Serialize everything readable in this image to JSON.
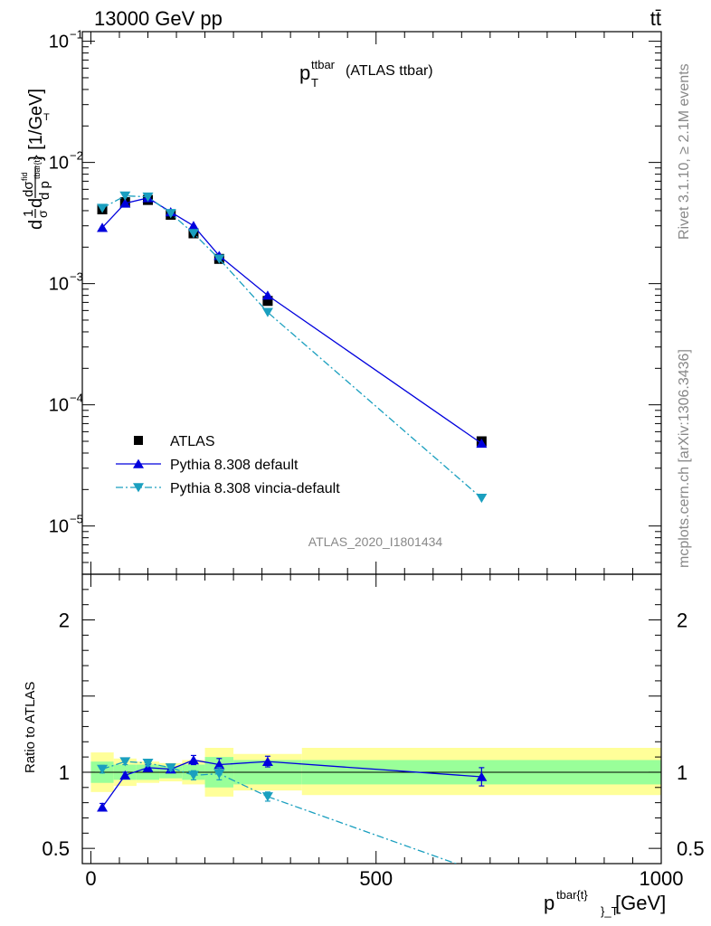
{
  "header": {
    "energy_label": "13000 GeV pp",
    "process_label": "tt̄",
    "side_rivet": "Rivet 3.1.10, ≥ 2.1M events",
    "side_mcplots": "mcplots.cern.ch [arXiv:1306.3436]",
    "watermark": "ATLAS_2020_I1801434"
  },
  "chart_data": {
    "type": "scatter",
    "title": "p_T^ttbar (ATLAS ttbar)",
    "title_main": "p",
    "title_sub": "T",
    "title_sup": "ttbar",
    "title_suffix": "(ATLAS ttbar)",
    "xlabel": "p^{tbar{t}}_T [GeV]",
    "xlabel_main": "p",
    "xlabel_sup": "tbar{t}",
    "xlabel_sub": "}_T",
    "xlabel_unit": "[GeV]",
    "ylabel": "1/σ dσ/d p_T^tbar{t} [1/GeV]",
    "ylabel_unit": "} [1/GeV]",
    "ratio_ylabel": "Ratio to ATLAS",
    "xlim": [
      -15,
      1000
    ],
    "ylim": [
      4e-06,
      0.12
    ],
    "ylog": true,
    "ratio_ylim": [
      0.4,
      2.3
    ],
    "x_ticks": [
      0,
      500,
      1000
    ],
    "x_tick_labels": [
      "0",
      "500",
      "1000"
    ],
    "y_ticks": [
      1e-05,
      0.0001,
      0.001,
      0.01,
      0.1
    ],
    "y_tick_labels": [
      "10^-5",
      "10^-4",
      "10^-3",
      "10^-2",
      "10^-1"
    ],
    "ratio_ticks": [
      0.5,
      1,
      2
    ],
    "ratio_tick_labels": [
      "0.5",
      "1",
      "2"
    ],
    "bins": [
      [
        0,
        40
      ],
      [
        40,
        80
      ],
      [
        80,
        120
      ],
      [
        120,
        160
      ],
      [
        160,
        200
      ],
      [
        200,
        250
      ],
      [
        250,
        370
      ],
      [
        370,
        1000
      ]
    ],
    "x": [
      20,
      60,
      100,
      140,
      180,
      225,
      310,
      685
    ],
    "series": [
      {
        "name": "ATLAS",
        "values": [
          0.0041,
          0.0047,
          0.0049,
          0.0037,
          0.0026,
          0.0016,
          0.00072,
          5e-05
        ],
        "ratio_stat_band": [
          [
            0.93,
            1.07
          ],
          [
            0.95,
            1.05
          ],
          [
            0.95,
            1.05
          ],
          [
            0.96,
            1.04
          ],
          [
            0.95,
            1.05
          ],
          [
            0.9,
            1.1
          ],
          [
            0.92,
            1.08
          ],
          [
            0.92,
            1.08
          ]
        ],
        "ratio_total_band": [
          [
            0.87,
            1.13
          ],
          [
            0.91,
            1.09
          ],
          [
            0.93,
            1.07
          ],
          [
            0.94,
            1.06
          ],
          [
            0.92,
            1.08
          ],
          [
            0.84,
            1.16
          ],
          [
            0.88,
            1.12
          ],
          [
            0.85,
            1.16
          ]
        ],
        "color": "#000000"
      },
      {
        "name": "Pythia 8.308 default",
        "values": [
          0.0029,
          0.0046,
          0.0051,
          0.0039,
          0.003,
          0.0017,
          0.0008,
          4.8e-05
        ],
        "ratio": [
          0.77,
          0.98,
          1.03,
          1.02,
          1.08,
          1.05,
          1.07,
          0.97
        ],
        "ratio_err": [
          0.025,
          0.02,
          0.02,
          0.02,
          0.03,
          0.04,
          0.035,
          0.06
        ],
        "color": "#0000dd"
      },
      {
        "name": "Pythia 8.308 vincia-default",
        "values": [
          0.0042,
          0.0053,
          0.0052,
          0.0038,
          0.0026,
          0.0016,
          0.00058,
          1.7e-05
        ],
        "ratio": [
          1.02,
          1.07,
          1.06,
          1.03,
          0.98,
          0.99,
          0.84,
          0.34
        ],
        "ratio_err": [
          0.025,
          0.02,
          0.02,
          0.02,
          0.03,
          0.04,
          0.03,
          0.05
        ],
        "color": "#1a9fbf"
      }
    ],
    "legend_position": "lower-left"
  }
}
